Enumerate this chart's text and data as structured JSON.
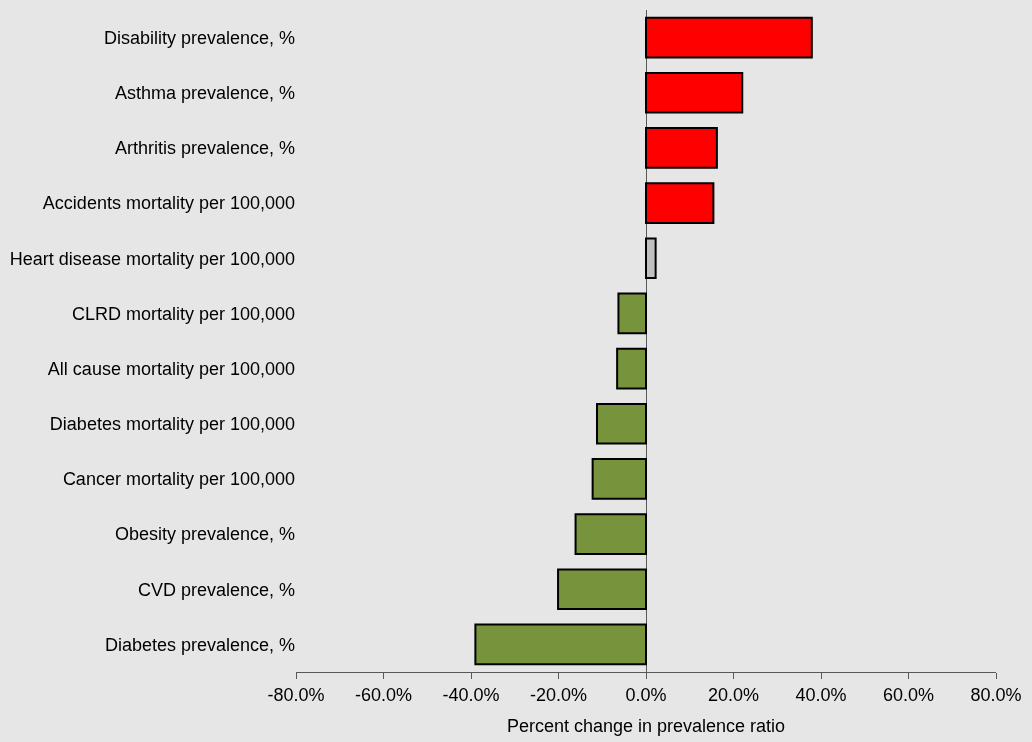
{
  "chart_data": {
    "type": "bar",
    "orientation": "horizontal",
    "xlabel": "Percent change in prevalence ratio",
    "categories": [
      "Disability prevalence, %",
      "Asthma prevalence, %",
      "Arthritis prevalence, %",
      "Accidents mortality per 100,000",
      "Heart disease mortality per 100,000",
      "CLRD mortality per 100,000",
      "All cause mortality per 100,000",
      "Diabetes mortality per 100,000",
      "Cancer mortality per 100,000",
      "Obesity prevalence, %",
      "CVD prevalence, %",
      "Diabetes prevalence, %"
    ],
    "values": [
      37.9,
      22.0,
      16.2,
      15.4,
      2.2,
      -6.3,
      -6.6,
      -11.2,
      -12.2,
      -16.1,
      -20.1,
      -39.0
    ],
    "colors": [
      "#ff0000",
      "#ff0000",
      "#ff0000",
      "#ff0000",
      "#c0c0c0",
      "#77933c",
      "#77933c",
      "#77933c",
      "#77933c",
      "#77933c",
      "#77933c",
      "#77933c"
    ],
    "xlim": [
      -80,
      80
    ],
    "xticks": [
      {
        "value": -80,
        "label": "-80.0%"
      },
      {
        "value": -60,
        "label": "-60.0%"
      },
      {
        "value": -40,
        "label": "-40.0%"
      },
      {
        "value": -20,
        "label": "-20.0%"
      },
      {
        "value": 0,
        "label": "0.0%"
      },
      {
        "value": 20,
        "label": "20.0%"
      },
      {
        "value": 40,
        "label": "40.0%"
      },
      {
        "value": 60,
        "label": "60.0%"
      },
      {
        "value": 80,
        "label": "80.0%"
      }
    ],
    "legend": false
  }
}
